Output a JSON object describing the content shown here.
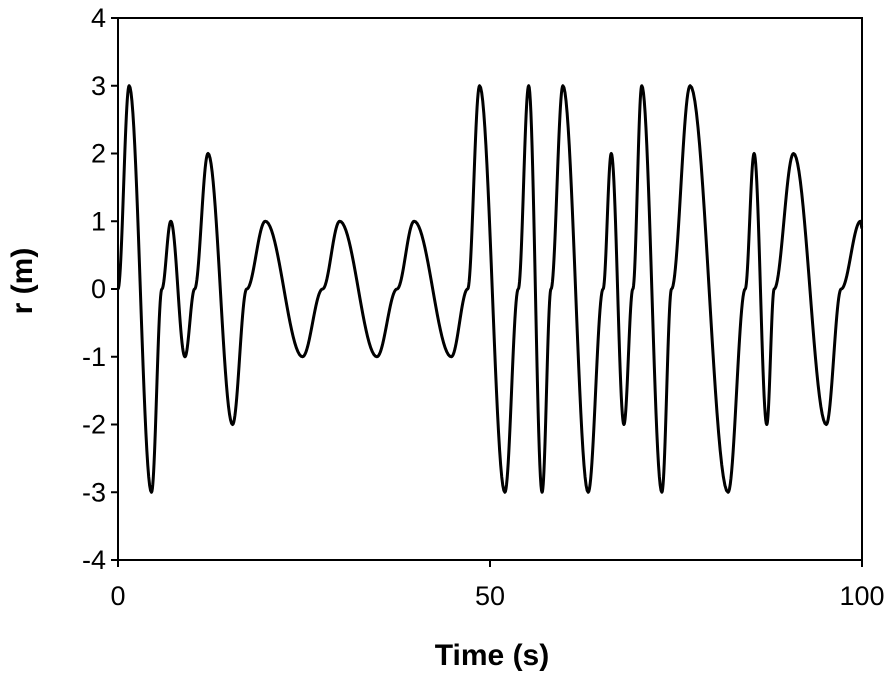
{
  "chart_data": {
    "type": "line",
    "title": "",
    "xlabel": "Time (s)",
    "ylabel": "r (m)",
    "xlim": [
      0,
      100
    ],
    "ylim": [
      -4,
      4
    ],
    "xticks": [
      0,
      50,
      100
    ],
    "xtick_labels": [
      "0",
      "50",
      "100"
    ],
    "yticks": [
      4,
      3,
      2,
      1,
      0,
      -1,
      -2,
      -3,
      -4
    ],
    "ytick_labels": [
      "4",
      "3",
      "2",
      "1",
      "0",
      "-1",
      "-2",
      "-3",
      "-4"
    ],
    "grid": false,
    "legend": "none",
    "line_color": "#000000",
    "series": [
      {
        "x": [
          0,
          1.5,
          4.5,
          5.9,
          7.1,
          9.0,
          10.3,
          12.1,
          15.4,
          17.3,
          19.8,
          24.8,
          27.5,
          29.8,
          34.8,
          37.5,
          39.8,
          44.8,
          47.0,
          48.6,
          52.0,
          53.8,
          55.2,
          57.0,
          58.2,
          59.8,
          63.2,
          65.2,
          66.3,
          68.0,
          69.2,
          70.4,
          73.1,
          74.4,
          76.9,
          82.0,
          84.3,
          85.5,
          87.2,
          88.2,
          90.8,
          95.2,
          97.2,
          99.8,
          100.0
        ],
        "y": [
          0,
          3,
          -3,
          0,
          1,
          -1,
          0,
          2,
          -2,
          0,
          1,
          -1,
          0,
          1,
          -1,
          0,
          1,
          -1,
          0,
          3,
          -3,
          0,
          3,
          -3,
          0,
          3,
          -3,
          0,
          2,
          -2,
          0,
          3,
          -3,
          0,
          3,
          -3,
          0,
          2,
          -2,
          0,
          2,
          -2,
          0,
          1,
          0.9
        ]
      }
    ]
  }
}
